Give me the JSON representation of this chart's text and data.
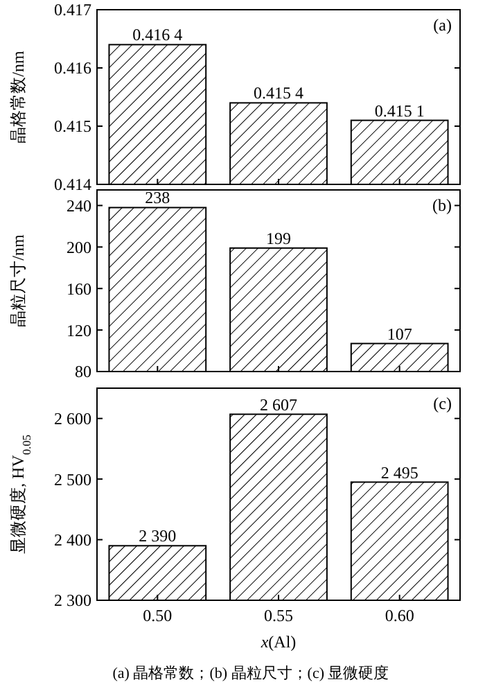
{
  "chart_data": [
    {
      "type": "bar",
      "categories": [
        "0.50",
        "0.55",
        "0.60"
      ],
      "values": [
        0.4164,
        0.4154,
        0.4151
      ],
      "value_labels": [
        "0.416 4",
        "0.415 4",
        "0.415 1"
      ],
      "color": "#000000",
      "ylim": [
        0.414,
        0.417
      ],
      "yticks": [
        0.414,
        0.415,
        0.416,
        0.417
      ],
      "ylabel": "晶格常数/nm",
      "annotations": [
        "(a)"
      ],
      "tick_labels": "y",
      "grid": false
    },
    {
      "type": "bar",
      "categories": [
        "0.50",
        "0.55",
        "0.60"
      ],
      "values": [
        238,
        199,
        107
      ],
      "data_labels": true,
      "color": "#000000",
      "ylim": [
        80,
        255
      ],
      "yticks": [
        80,
        120,
        160,
        200,
        240
      ],
      "ylabel": "晶粒尺寸/nm",
      "annotations": [
        "(b)"
      ],
      "tick_labels": "y",
      "grid": false
    },
    {
      "type": "bar",
      "categories": [
        "0.50",
        "0.55",
        "0.60"
      ],
      "values": [
        2390,
        2607,
        2495
      ],
      "value_labels": [
        "2 390",
        "2 607",
        "2 495"
      ],
      "color": "#000000",
      "ylim": [
        2300,
        2650
      ],
      "yticks": [
        {
          "value": 2300,
          "label": "2 300"
        },
        {
          "value": 2400,
          "label": "2 400"
        },
        {
          "value": 2500,
          "label": "2 500"
        },
        {
          "value": 2600,
          "label": "2 600"
        }
      ],
      "ylabel": "显微硬度, HV$_{0.05}$",
      "xlabel": "x(Al)",
      "annotations": [
        "(c)",
        "(a) 晶格常数；(b) 晶粒尺寸；(c) 显微硬度"
      ],
      "grid": false
    }
  ]
}
